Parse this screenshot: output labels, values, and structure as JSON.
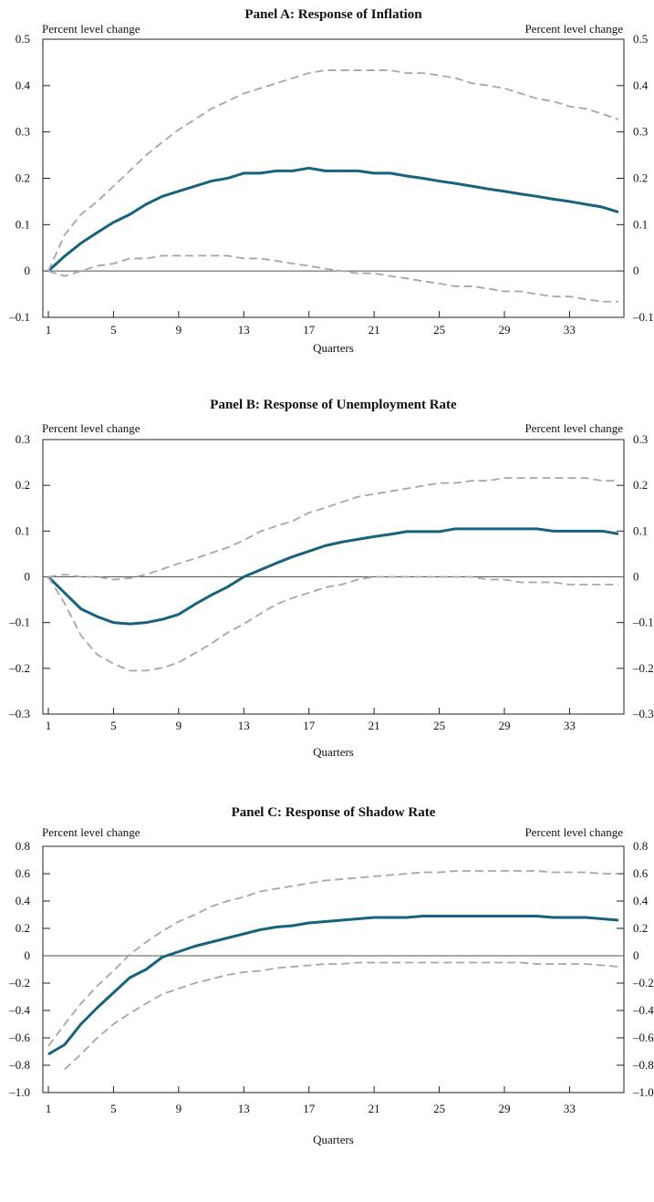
{
  "chart_data": [
    {
      "type": "line",
      "title": "Panel A: Response of Inflation",
      "ylabel_left": "Percent level change",
      "ylabel_right": "Percent level change",
      "xlabel": "Quarters",
      "xlim": [
        1,
        36
      ],
      "ylim": [
        -0.1,
        0.5
      ],
      "x_ticks": [
        1,
        5,
        9,
        13,
        17,
        21,
        25,
        29,
        33
      ],
      "y_ticks": [
        -0.1,
        0,
        0.1,
        0.2,
        0.3,
        0.4,
        0.5
      ],
      "y_tick_labels": [
        "–0.1",
        "0",
        "0.1",
        "0.2",
        "0.3",
        "0.4",
        "0.5"
      ],
      "zero_line": true,
      "colors": {
        "response": "#17627c",
        "band": "#a6a6a6",
        "zero": "#555555"
      },
      "series": [
        {
          "role": "response",
          "values": [
            0,
            0.032,
            0.06,
            0.083,
            0.105,
            0.122,
            0.144,
            0.161,
            0.172,
            0.183,
            0.194,
            0.2,
            0.211,
            0.211,
            0.216,
            0.216,
            0.222,
            0.216,
            0.216,
            0.216,
            0.211,
            0.211,
            0.205,
            0.2,
            0.194,
            0.189,
            0.183,
            0.177,
            0.172,
            0.166,
            0.161,
            0.155,
            0.15,
            0.144,
            0.138,
            0.127
          ]
        },
        {
          "role": "upper",
          "values": [
            0,
            0.078,
            0.122,
            0.15,
            0.183,
            0.216,
            0.25,
            0.278,
            0.305,
            0.327,
            0.35,
            0.366,
            0.383,
            0.394,
            0.405,
            0.416,
            0.427,
            0.433,
            0.433,
            0.433,
            0.433,
            0.433,
            0.427,
            0.427,
            0.422,
            0.416,
            0.405,
            0.4,
            0.394,
            0.383,
            0.372,
            0.366,
            0.355,
            0.35,
            0.339,
            0.327
          ]
        },
        {
          "role": "lower",
          "values": [
            0,
            -0.011,
            0,
            0.011,
            0.016,
            0.027,
            0.027,
            0.033,
            0.033,
            0.033,
            0.033,
            0.033,
            0.027,
            0.027,
            0.022,
            0.016,
            0.011,
            0.005,
            0,
            -0.005,
            -0.005,
            -0.011,
            -0.016,
            -0.022,
            -0.027,
            -0.033,
            -0.033,
            -0.038,
            -0.044,
            -0.044,
            -0.05,
            -0.055,
            -0.055,
            -0.061,
            -0.066,
            -0.066
          ]
        }
      ]
    },
    {
      "type": "line",
      "title": "Panel B: Response of Unemployment Rate",
      "ylabel_left": "Percent level change",
      "ylabel_right": "Percent level change",
      "xlabel": "Quarters",
      "xlim": [
        1,
        36
      ],
      "ylim": [
        -0.3,
        0.3
      ],
      "x_ticks": [
        1,
        5,
        9,
        13,
        17,
        21,
        25,
        29,
        33
      ],
      "y_ticks": [
        -0.3,
        -0.2,
        -0.1,
        0,
        0.1,
        0.2,
        0.3
      ],
      "y_tick_labels": [
        "–0.3",
        "–0.2",
        "–0.1",
        "0",
        "0.1",
        "0.2",
        "0.3"
      ],
      "zero_line": true,
      "colors": {
        "response": "#17627c",
        "band": "#a6a6a6",
        "zero": "#555555"
      },
      "series": [
        {
          "role": "response",
          "values": [
            0,
            -0.035,
            -0.07,
            -0.087,
            -0.1,
            -0.103,
            -0.1,
            -0.093,
            -0.082,
            -0.06,
            -0.04,
            -0.022,
            0,
            0.015,
            0.03,
            0.044,
            0.056,
            0.068,
            0.076,
            0.082,
            0.088,
            0.093,
            0.099,
            0.099,
            0.099,
            0.105,
            0.105,
            0.105,
            0.105,
            0.105,
            0.105,
            0.1,
            0.1,
            0.1,
            0.1,
            0.094
          ]
        },
        {
          "role": "upper",
          "values": [
            0,
            0.005,
            0,
            0,
            -0.006,
            -0.003,
            0.005,
            0.017,
            0.029,
            0.04,
            0.052,
            0.064,
            0.08,
            0.099,
            0.111,
            0.122,
            0.14,
            0.151,
            0.163,
            0.175,
            0.181,
            0.187,
            0.193,
            0.199,
            0.205,
            0.205,
            0.21,
            0.21,
            0.216,
            0.216,
            0.216,
            0.216,
            0.216,
            0.216,
            0.21,
            0.21
          ]
        },
        {
          "role": "lower",
          "values": [
            0,
            -0.058,
            -0.128,
            -0.17,
            -0.19,
            -0.205,
            -0.205,
            -0.199,
            -0.187,
            -0.167,
            -0.146,
            -0.122,
            -0.103,
            -0.081,
            -0.06,
            -0.046,
            -0.035,
            -0.023,
            -0.017,
            -0.006,
            0,
            0,
            0,
            0,
            0,
            0,
            0,
            -0.006,
            -0.006,
            -0.012,
            -0.012,
            -0.012,
            -0.017,
            -0.017,
            -0.017,
            -0.017
          ]
        }
      ]
    },
    {
      "type": "line",
      "title": "Panel C: Response of Shadow Rate",
      "ylabel_left": "Percent level change",
      "ylabel_right": "Percent level change",
      "xlabel": "Quarters",
      "xlim": [
        1,
        36
      ],
      "ylim": [
        -1.0,
        0.8
      ],
      "x_ticks": [
        1,
        5,
        9,
        13,
        17,
        21,
        25,
        29,
        33
      ],
      "y_ticks": [
        -1.0,
        -0.8,
        -0.6,
        -0.4,
        -0.2,
        0,
        0.2,
        0.4,
        0.6,
        0.8
      ],
      "y_tick_labels": [
        "–1.0",
        "–0.8",
        "–0.6",
        "–0.4",
        "–0.2",
        "0",
        "0.2",
        "0.4",
        "0.6",
        "0.8"
      ],
      "zero_line": true,
      "colors": {
        "response": "#17627c",
        "band": "#a6a6a6",
        "zero": "#555555"
      },
      "series": [
        {
          "role": "response",
          "values": [
            -0.72,
            -0.65,
            -0.5,
            -0.38,
            -0.27,
            -0.16,
            -0.1,
            -0.01,
            0.03,
            0.07,
            0.1,
            0.13,
            0.16,
            0.19,
            0.21,
            0.22,
            0.24,
            0.25,
            0.26,
            0.27,
            0.28,
            0.28,
            0.28,
            0.29,
            0.29,
            0.29,
            0.29,
            0.29,
            0.29,
            0.29,
            0.29,
            0.28,
            0.28,
            0.28,
            0.27,
            0.26
          ]
        },
        {
          "role": "upper",
          "values": [
            -0.66,
            -0.5,
            -0.35,
            -0.22,
            -0.11,
            0.01,
            0.1,
            0.18,
            0.25,
            0.3,
            0.36,
            0.4,
            0.43,
            0.47,
            0.49,
            0.51,
            0.53,
            0.55,
            0.56,
            0.57,
            0.58,
            0.59,
            0.6,
            0.61,
            0.61,
            0.62,
            0.62,
            0.62,
            0.62,
            0.62,
            0.62,
            0.61,
            0.61,
            0.61,
            0.6,
            0.6
          ]
        },
        {
          "role": "lower",
          "values": [
            null,
            -0.83,
            -0.72,
            -0.6,
            -0.5,
            -0.42,
            -0.35,
            -0.28,
            -0.24,
            -0.2,
            -0.17,
            -0.14,
            -0.12,
            -0.11,
            -0.09,
            -0.08,
            -0.07,
            -0.06,
            -0.06,
            -0.05,
            -0.05,
            -0.05,
            -0.05,
            -0.05,
            -0.05,
            -0.05,
            -0.05,
            -0.05,
            -0.05,
            -0.05,
            -0.06,
            -0.06,
            -0.06,
            -0.06,
            -0.07,
            -0.08
          ]
        }
      ]
    }
  ]
}
